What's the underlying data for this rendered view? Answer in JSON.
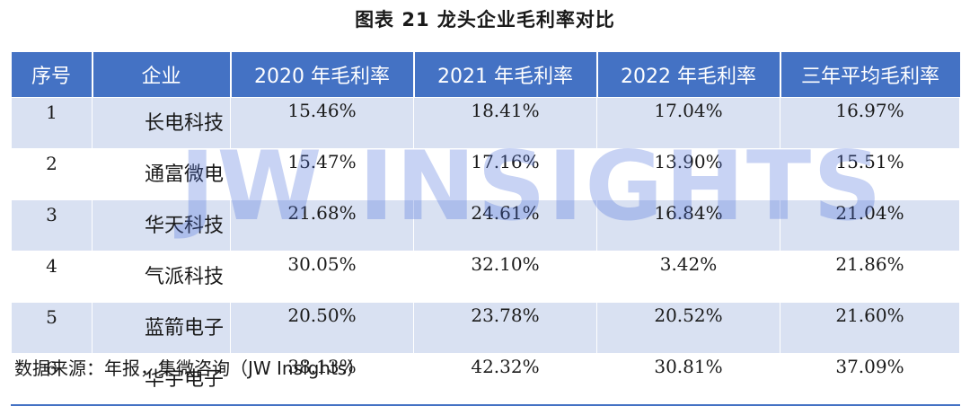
{
  "title": "图表 21 龙头企业毛利率对比",
  "table": {
    "headers": [
      "序号",
      "企业",
      "2020 年毛利率",
      "2021 年毛利率",
      "2022 年毛利率",
      "三年平均毛利率"
    ],
    "rows": [
      [
        "1",
        "长电科技",
        "15.46%",
        "18.41%",
        "17.04%",
        "16.97%"
      ],
      [
        "2",
        "通富微电",
        "15.47%",
        "17.16%",
        "13.90%",
        "15.51%"
      ],
      [
        "3",
        "华天科技",
        "21.68%",
        "24.61%",
        "16.84%",
        "21.04%"
      ],
      [
        "4",
        "气派科技",
        "30.05%",
        "32.10%",
        "3.42%",
        "21.86%"
      ],
      [
        "5",
        "蓝箭电子",
        "20.50%",
        "23.78%",
        "20.52%",
        "21.60%"
      ],
      [
        "6",
        "华宇电子",
        "38.13%",
        "42.32%",
        "30.81%",
        "37.09%"
      ]
    ]
  },
  "watermark": "JW INSIGHTS",
  "source": "数据来源：年报，集微咨询（JW Insights）",
  "colors": {
    "header_bg": "#4472c4",
    "stripe_bg": "#d9e1f2",
    "watermark": "#4a6edc"
  }
}
